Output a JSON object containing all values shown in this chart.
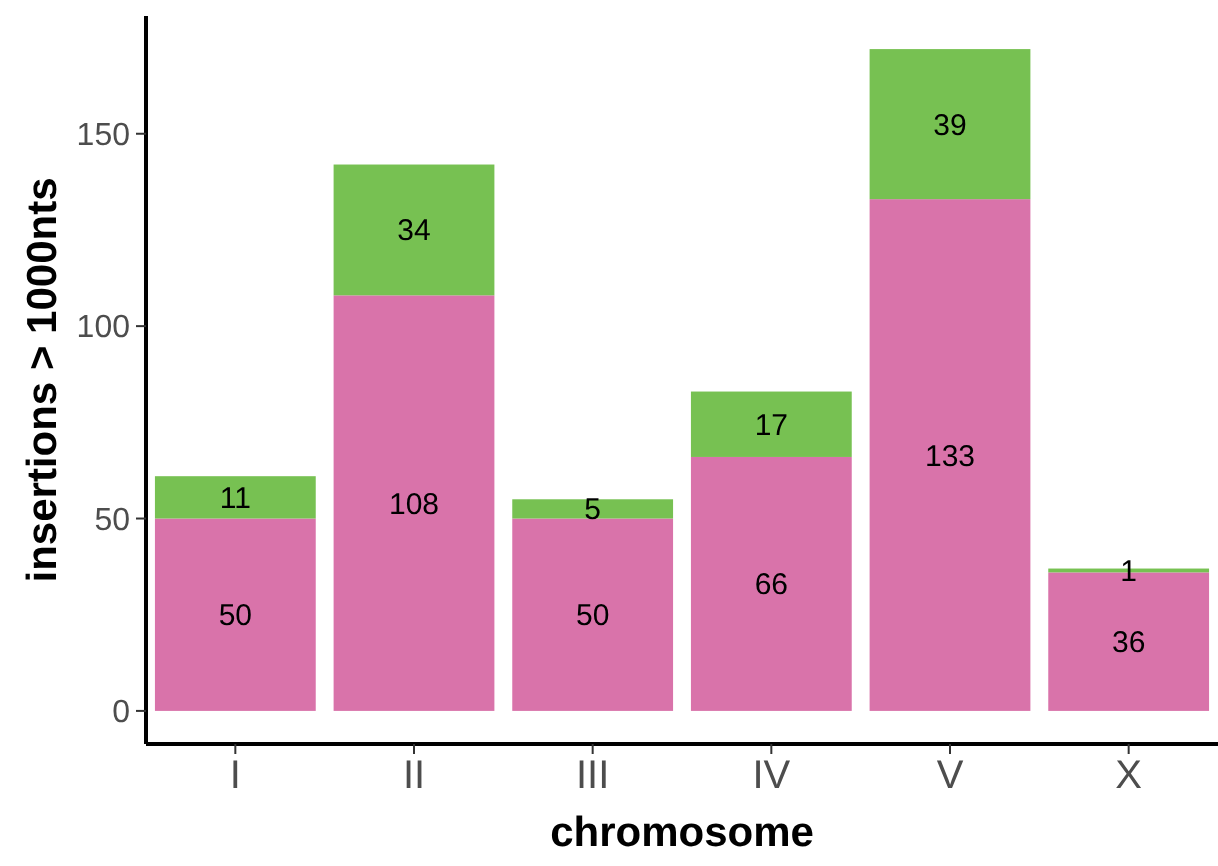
{
  "chart_data": {
    "type": "bar",
    "stacked": true,
    "xlabel": "chromosome",
    "ylabel": "insertions > 1000nts",
    "categories": [
      "I",
      "II",
      "III",
      "IV",
      "V",
      "X"
    ],
    "series": [
      {
        "color": "#d973aa",
        "values": [
          50,
          108,
          50,
          66,
          133,
          36
        ]
      },
      {
        "color": "#77c152",
        "values": [
          11,
          34,
          5,
          17,
          39,
          1
        ]
      }
    ],
    "ylim": [
      -8.6,
      180.6
    ],
    "yticks": [
      0,
      50,
      100,
      150
    ],
    "data_labels": true
  }
}
